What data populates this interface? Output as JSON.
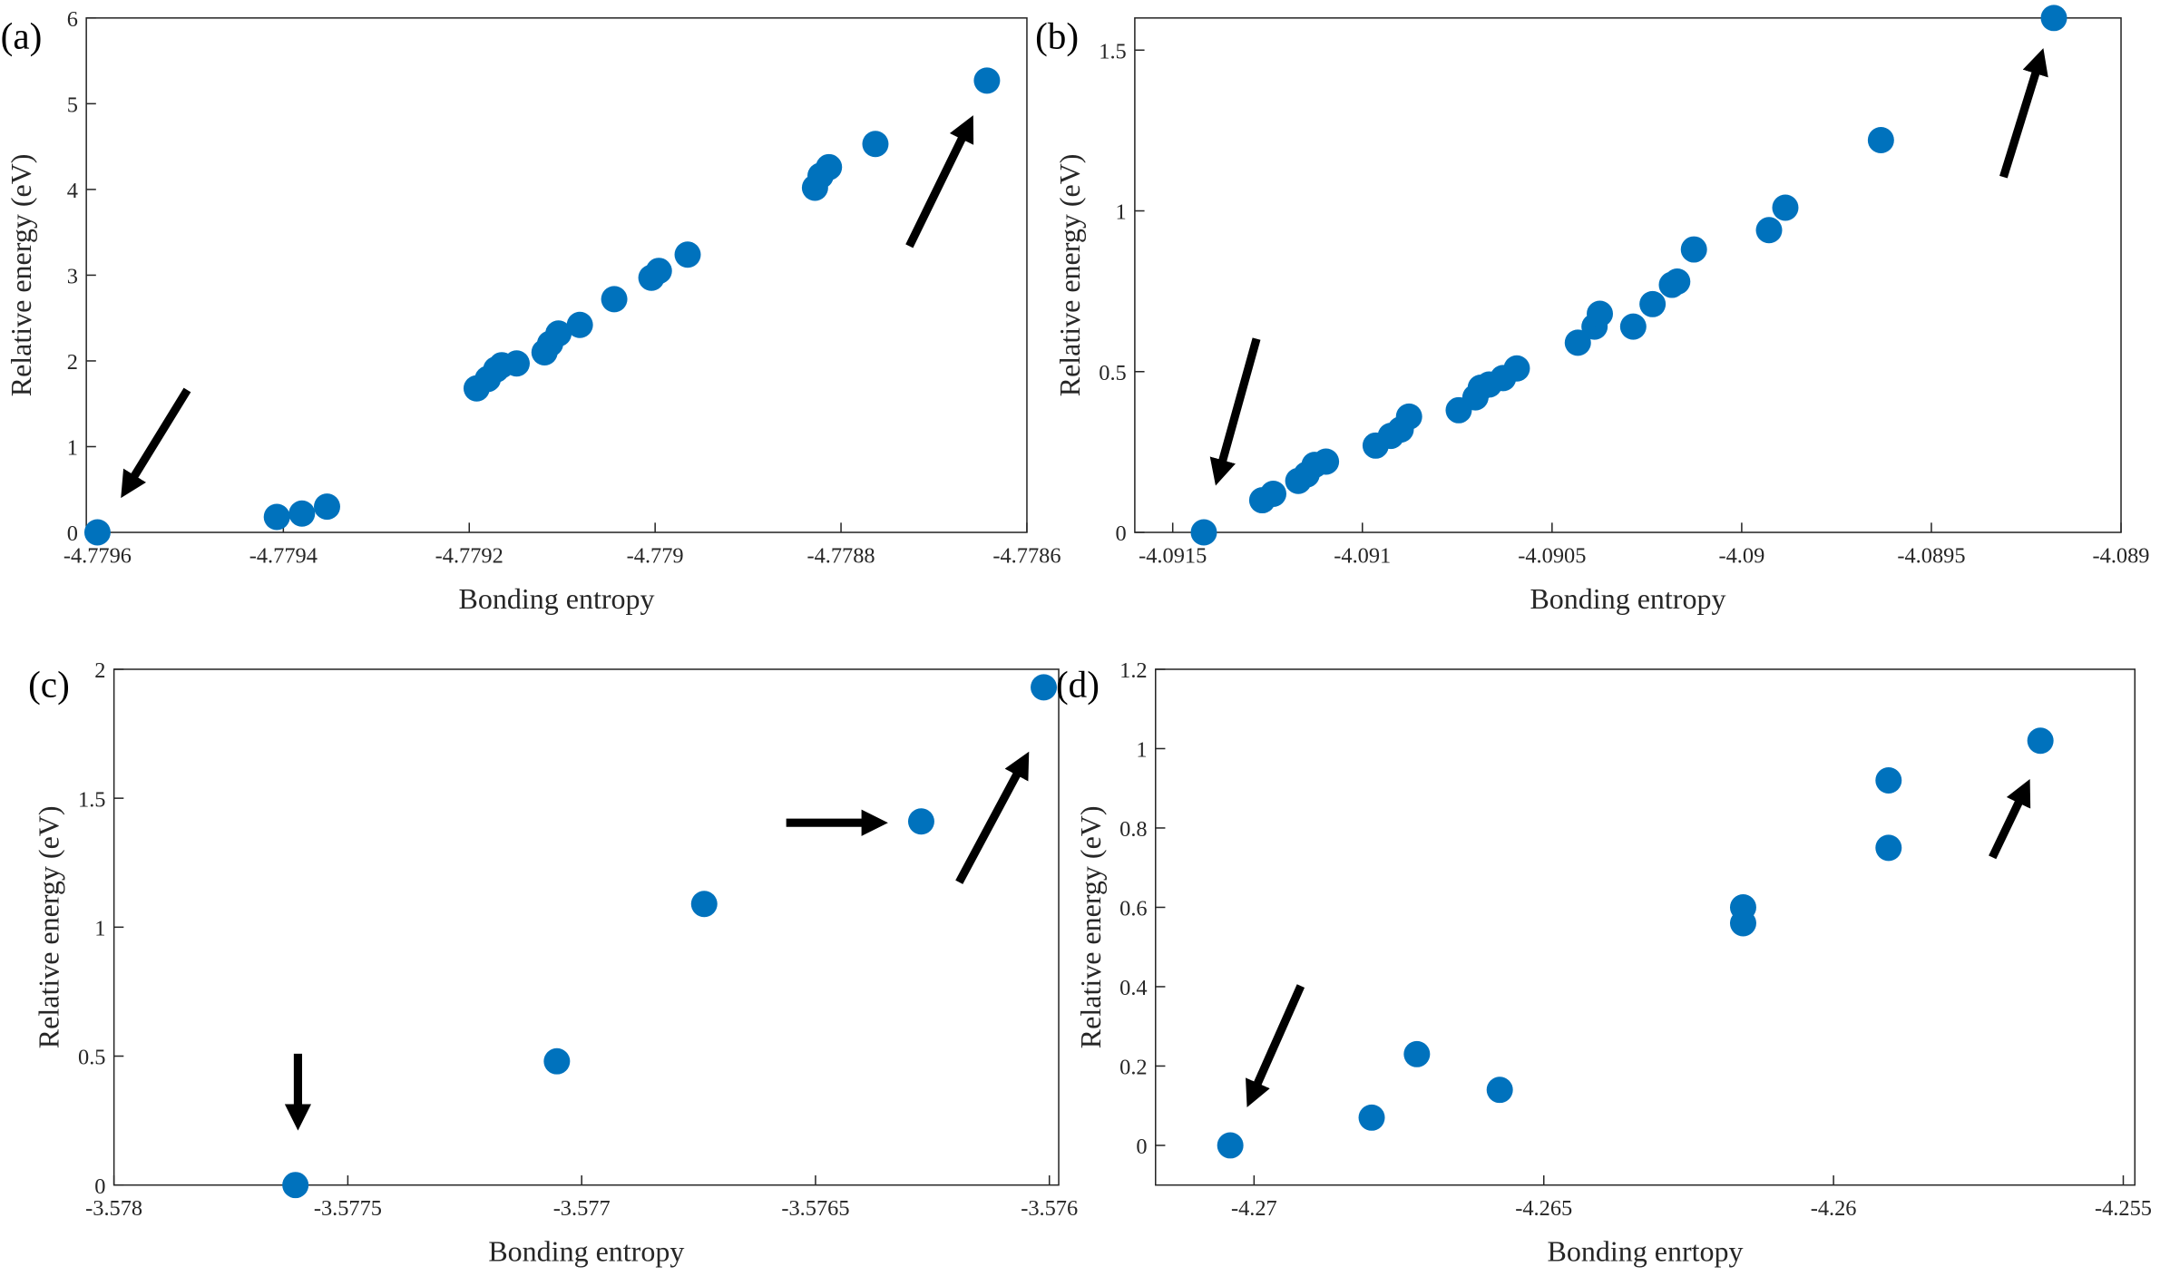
{
  "chart_data": [
    {
      "type": "scatter",
      "label": "(a)",
      "x_label": "Bonding entropy",
      "y_label": "Relative energy (eV)",
      "color": "#0072bd",
      "x": [
        -4.7796,
        -4.779407,
        -4.77938,
        -4.779353,
        -4.779192,
        -4.77918,
        -4.779171,
        -4.779165,
        -4.779149,
        -4.779119,
        -4.779113,
        -4.779104,
        -4.779081,
        -4.779044,
        -4.779004,
        -4.778996,
        -4.778965,
        -4.778828,
        -4.778822,
        -4.778813,
        -4.778763,
        -4.778643
      ],
      "values": [
        0,
        0.18,
        0.22,
        0.3,
        1.68,
        1.79,
        1.9,
        1.95,
        1.97,
        2.1,
        2.2,
        2.32,
        2.42,
        2.72,
        2.97,
        3.05,
        3.24,
        4.02,
        4.16,
        4.26,
        4.53,
        5.27
      ],
      "xlim": [
        -4.779612,
        -4.7786
      ],
      "ylim": [
        0,
        6
      ],
      "xticks": [
        -4.7796,
        -4.7794,
        -4.7792,
        -4.779,
        -4.7788,
        -4.7786
      ],
      "yticks": [
        0,
        1,
        2,
        3,
        4,
        5,
        6
      ]
    },
    {
      "type": "scatter",
      "label": "(b)",
      "x_label": "Bonding entropy",
      "y_label": "Relative energy (eV)",
      "color": "#0072bd",
      "x": [
        -4.091418,
        -4.091264,
        -4.091235,
        -4.091169,
        -4.091147,
        -4.091126,
        -4.091096,
        -4.090965,
        -4.090925,
        -4.090899,
        -4.090877,
        -4.090746,
        -4.090702,
        -4.090688,
        -4.090666,
        -4.090629,
        -4.090593,
        -4.090432,
        -4.090388,
        -4.090374,
        -4.090286,
        -4.090235,
        -4.090184,
        -4.09017,
        -4.090126,
        -4.089928,
        -4.089885,
        -4.089633,
        -4.089177
      ],
      "values": [
        0,
        0.1,
        0.12,
        0.16,
        0.18,
        0.21,
        0.22,
        0.27,
        0.3,
        0.32,
        0.36,
        0.38,
        0.42,
        0.45,
        0.46,
        0.48,
        0.51,
        0.59,
        0.64,
        0.68,
        0.64,
        0.71,
        0.77,
        0.78,
        0.88,
        0.94,
        1.01,
        1.22,
        1.6
      ],
      "xlim": [
        -4.0916,
        -4.089
      ],
      "ylim": [
        0,
        1.6
      ],
      "xticks": [
        -4.0915,
        -4.091,
        -4.0905,
        -4.09,
        -4.0895,
        -4.089
      ],
      "yticks": [
        0,
        0.5,
        1,
        1.5
      ]
    },
    {
      "type": "scatter",
      "label": "(c)",
      "x_label": "Bonding entropy",
      "y_label": "Relative energy (eV)",
      "color": "#0072bd",
      "x": [
        -3.577612,
        -3.577053,
        -3.576738,
        -3.576274,
        -3.576012
      ],
      "values": [
        0,
        0.48,
        1.09,
        1.41,
        1.93
      ],
      "xlim": [
        -3.578,
        -3.57598
      ],
      "ylim": [
        0,
        2
      ],
      "xticks": [
        -3.578,
        -3.5775,
        -3.577,
        -3.5765,
        -3.576
      ],
      "yticks": [
        0,
        0.5,
        1,
        1.5,
        2
      ]
    },
    {
      "type": "scatter",
      "label": "(d)",
      "x_label": "Bonding enrtopy",
      "y_label": "Relative energy (eV)",
      "color": "#0072bd",
      "x": [
        -4.27041,
        -4.26797,
        -4.26719,
        -4.26576,
        -4.26156,
        -4.26156,
        -4.25905,
        -4.25905,
        -4.25643
      ],
      "values": [
        0,
        0.07,
        0.23,
        0.14,
        0.6,
        0.56,
        0.92,
        0.75,
        1.02
      ],
      "xlim": [
        -4.2717,
        -4.2548
      ],
      "ylim": [
        -0.1,
        1.2
      ],
      "xticks": [
        -4.27,
        -4.265,
        -4.26,
        -4.255
      ],
      "yticks": [
        0,
        0.2,
        0.4,
        0.6,
        0.8,
        1,
        1.2
      ]
    }
  ]
}
